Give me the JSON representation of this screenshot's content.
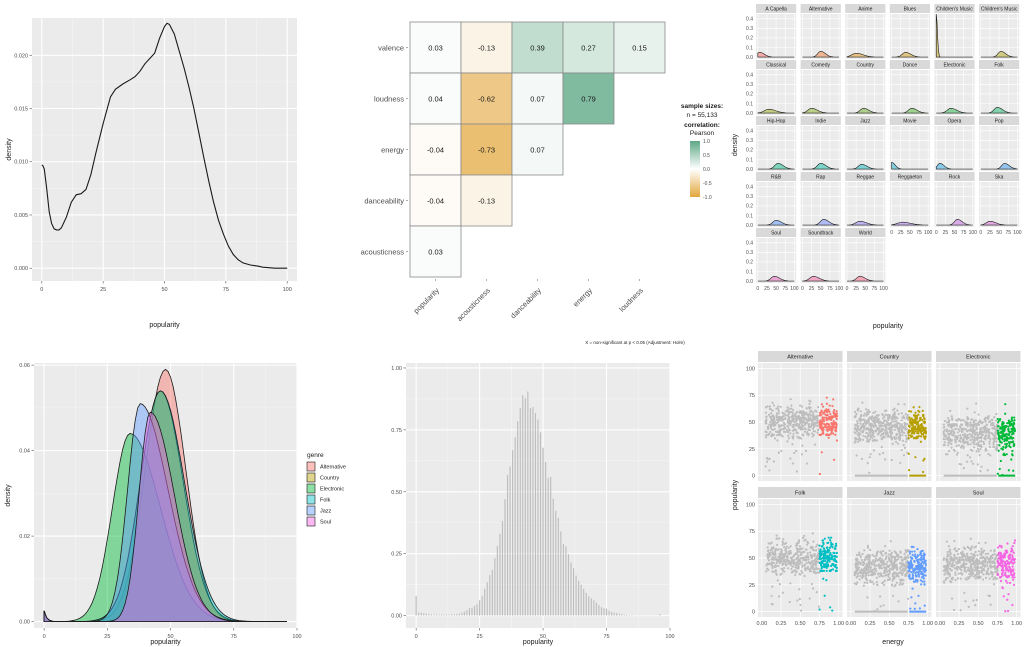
{
  "chart_data": [
    {
      "id": "overall-density",
      "type": "line",
      "title": "",
      "xlabel": "popularity",
      "ylabel": "density",
      "xlim": [
        0,
        100
      ],
      "ylim": [
        -0.0012,
        0.0235
      ],
      "xticks": [
        "0",
        "25",
        "50",
        "75",
        "100"
      ],
      "xtick_values": [
        0,
        25,
        50,
        75,
        100
      ],
      "yticks": [
        "0.000",
        "0.005",
        "0.010",
        "0.015",
        "0.020"
      ],
      "ytick_values": [
        0,
        0.005,
        0.01,
        0.015,
        0.02
      ],
      "grid": true,
      "series": [
        {
          "name": "popularity",
          "x": [
            0,
            0.5,
            1,
            2,
            3,
            4,
            5,
            6,
            7,
            8,
            10,
            12,
            14,
            16,
            18,
            20,
            22,
            25,
            28,
            30,
            33,
            36,
            38,
            40,
            42,
            44,
            46,
            48,
            50,
            51,
            52,
            54,
            56,
            58,
            60,
            62,
            64,
            66,
            68,
            70,
            72,
            74,
            76,
            78,
            80,
            82,
            85,
            88,
            90,
            95,
            100
          ],
          "y": [
            0.0097,
            0.0096,
            0.0093,
            0.0075,
            0.0053,
            0.0042,
            0.0037,
            0.0036,
            0.0036,
            0.0038,
            0.0048,
            0.0062,
            0.0069,
            0.007,
            0.0074,
            0.0088,
            0.0108,
            0.0136,
            0.0161,
            0.0168,
            0.0173,
            0.0177,
            0.018,
            0.0185,
            0.0192,
            0.0197,
            0.0202,
            0.0216,
            0.0227,
            0.023,
            0.0229,
            0.022,
            0.0204,
            0.0188,
            0.017,
            0.015,
            0.0127,
            0.0104,
            0.0082,
            0.0062,
            0.0045,
            0.0032,
            0.0021,
            0.0013,
            0.0008,
            0.0005,
            0.0003,
            0.0002,
            0.0001,
            0.0,
            0.0
          ]
        }
      ]
    },
    {
      "id": "correlation-matrix",
      "type": "heatmap",
      "title": "",
      "rows": [
        "valence",
        "loudness",
        "energy",
        "danceability",
        "acousticness"
      ],
      "columns": [
        "popularity",
        "acousticness",
        "danceability",
        "energy",
        "loudness"
      ],
      "values": [
        [
          0.03,
          -0.13,
          0.39,
          0.27,
          0.15
        ],
        [
          0.04,
          -0.62,
          0.07,
          0.79,
          null
        ],
        [
          -0.04,
          -0.73,
          0.07,
          null,
          null
        ],
        [
          -0.04,
          -0.13,
          null,
          null,
          null
        ],
        [
          0.03,
          null,
          null,
          null,
          null
        ]
      ],
      "labels": [
        [
          "0.03",
          "-0.13",
          "0.39",
          "0.27",
          "0.15"
        ],
        [
          "0.04",
          "-0.62",
          "0.07",
          "0.79",
          ""
        ],
        [
          "-0.04",
          "-0.73",
          "0.07",
          "",
          ""
        ],
        [
          "-0.04",
          "-0.13",
          "",
          "",
          ""
        ],
        [
          "0.03",
          "",
          "",
          "",
          ""
        ]
      ],
      "legend": {
        "sample_title": "sample sizes:",
        "sample_n": "n = 55,133",
        "corr_title": "correlation:",
        "corr_method": "Pearson",
        "scale_ticks": [
          "1.0",
          "0.5",
          "0.0",
          "-0.5",
          "-1.0"
        ],
        "scale_values": [
          1.0,
          0.5,
          0.0,
          -0.5,
          -1.0
        ],
        "color_high": "#5ea886",
        "color_mid": "#ffffff",
        "color_low": "#e3a73c",
        "placement": "right"
      },
      "caption": "X = non-significant at p < 0.05 (Adjustment: Holm)"
    },
    {
      "id": "genre-facet-density",
      "type": "area",
      "title": "",
      "xlabel": "popularity",
      "ylabel": "density",
      "xlim": [
        0,
        100
      ],
      "ylim": [
        0,
        0.45
      ],
      "xticks": [
        "0",
        "25",
        "50",
        "75",
        "100"
      ],
      "xtick_values": [
        0,
        25,
        50,
        75,
        100
      ],
      "yticks": [
        "0.0",
        "0.1",
        "0.2",
        "0.3",
        "0.4"
      ],
      "ytick_values": [
        0,
        0.1,
        0.2,
        0.3,
        0.4
      ],
      "facets": [
        {
          "name": "A Capella",
          "color": "#f8766d",
          "peak": 5,
          "height": 0.05,
          "spread": 8
        },
        {
          "name": "Alternative",
          "color": "#f08a4b",
          "peak": 50,
          "height": 0.06,
          "spread": 8
        },
        {
          "name": "Anime",
          "color": "#e29b2e",
          "peak": 25,
          "height": 0.04,
          "spread": 12
        },
        {
          "name": "Blues",
          "color": "#d4a42b",
          "peak": 38,
          "height": 0.05,
          "spread": 9
        },
        {
          "name": "Children's Music",
          "color": "#c7a92a",
          "peak": 0,
          "height": 0.45,
          "spread": 2
        },
        {
          "name": "Children's Music",
          "color": "#b8ad2a",
          "peak": 55,
          "height": 0.06,
          "spread": 8
        },
        {
          "name": "Classical",
          "color": "#a3b22b",
          "peak": 30,
          "height": 0.04,
          "spread": 12
        },
        {
          "name": "Comedy",
          "color": "#8fb52f",
          "peak": 25,
          "height": 0.05,
          "spread": 10
        },
        {
          "name": "Country",
          "color": "#7ab73a",
          "peak": 45,
          "height": 0.05,
          "spread": 9
        },
        {
          "name": "Dance",
          "color": "#5fb946",
          "peak": 55,
          "height": 0.05,
          "spread": 9
        },
        {
          "name": "Electronic",
          "color": "#3bba5a",
          "peak": 40,
          "height": 0.05,
          "spread": 10
        },
        {
          "name": "Folk",
          "color": "#2bbc78",
          "peak": 45,
          "height": 0.06,
          "spread": 9
        },
        {
          "name": "Hip-Hop",
          "color": "#23bd93",
          "peak": 55,
          "height": 0.06,
          "spread": 9
        },
        {
          "name": "Indie",
          "color": "#22beaa",
          "peak": 50,
          "height": 0.06,
          "spread": 9
        },
        {
          "name": "Jazz",
          "color": "#25bcc1",
          "peak": 40,
          "height": 0.05,
          "spread": 9
        },
        {
          "name": "Movie",
          "color": "#2ab7d6",
          "peak": 0,
          "height": 0.07,
          "spread": 6
        },
        {
          "name": "Opera",
          "color": "#36afe6",
          "peak": 10,
          "height": 0.06,
          "spread": 7
        },
        {
          "name": "Pop",
          "color": "#4aa4f1",
          "peak": 65,
          "height": 0.06,
          "spread": 8
        },
        {
          "name": "R&B",
          "color": "#6399f6",
          "peak": 50,
          "height": 0.05,
          "spread": 9
        },
        {
          "name": "Rap",
          "color": "#7d8ff8",
          "peak": 58,
          "height": 0.06,
          "spread": 9
        },
        {
          "name": "Reggae",
          "color": "#9786f6",
          "peak": 35,
          "height": 0.04,
          "spread": 11
        },
        {
          "name": "Reggaeton",
          "color": "#b17df0",
          "peak": 30,
          "height": 0.03,
          "spread": 14
        },
        {
          "name": "Rock",
          "color": "#c876e4",
          "peak": 58,
          "height": 0.06,
          "spread": 8
        },
        {
          "name": "Ska",
          "color": "#db70d4",
          "peak": 25,
          "height": 0.04,
          "spread": 10
        },
        {
          "name": "Soul",
          "color": "#e76dbf",
          "peak": 45,
          "height": 0.05,
          "spread": 9
        },
        {
          "name": "Soundtrack",
          "color": "#f06ca8",
          "peak": 30,
          "height": 0.05,
          "spread": 10
        },
        {
          "name": "World",
          "color": "#f56f8e",
          "peak": 35,
          "height": 0.05,
          "spread": 9
        }
      ]
    },
    {
      "id": "selected-genres-density",
      "type": "area",
      "title": "",
      "xlabel": "popularity",
      "ylabel": "density",
      "xlim": [
        0,
        100
      ],
      "ylim": [
        -0.0015,
        0.0605
      ],
      "xticks": [
        "0",
        "25",
        "50",
        "75",
        "100"
      ],
      "xtick_values": [
        0,
        25,
        50,
        75,
        100
      ],
      "yticks": [
        "0.00",
        "0.02",
        "0.04",
        "0.06"
      ],
      "ytick_values": [
        0,
        0.02,
        0.04,
        0.06
      ],
      "legend": {
        "title": "genre",
        "placement": "right"
      },
      "series": [
        {
          "name": "Alternative",
          "color": "#f8766d",
          "peak": 48,
          "height": 0.059,
          "sd_left": 8,
          "sd_right": 8
        },
        {
          "name": "Country",
          "color": "#b79f00",
          "peak": 46,
          "height": 0.054,
          "sd_left": 8,
          "sd_right": 9
        },
        {
          "name": "Electronic",
          "color": "#00ba38",
          "peak": 34,
          "height": 0.044,
          "sd_left": 7,
          "sd_right": 12
        },
        {
          "name": "Folk",
          "color": "#00bfc4",
          "peak": 46,
          "height": 0.054,
          "sd_left": 8,
          "sd_right": 9.5
        },
        {
          "name": "Jazz",
          "color": "#619cff",
          "peak": 38,
          "height": 0.051,
          "sd_left": 5,
          "sd_right": 11
        },
        {
          "name": "Soul",
          "color": "#f564e3",
          "peak": 42,
          "height": 0.049,
          "sd_left": 4.5,
          "sd_right": 9.5
        }
      ]
    },
    {
      "id": "popularity-histogram",
      "type": "bar",
      "title": "",
      "xlabel": "popularity",
      "ylabel": "",
      "xlim": [
        -4,
        100
      ],
      "ylim": [
        -0.05,
        1.02
      ],
      "xticks": [
        "0",
        "25",
        "50",
        "75",
        "100"
      ],
      "xtick_values": [
        0,
        25,
        50,
        75,
        100
      ],
      "yticks": [
        "0.00",
        "0.25",
        "0.50",
        "0.75",
        "1.00"
      ],
      "ytick_values": [
        0,
        0.25,
        0.5,
        0.75,
        1.0
      ],
      "bar_color": "#bdbdbd",
      "x": [
        0,
        1,
        2,
        3,
        4,
        5,
        6,
        7,
        8,
        9,
        10,
        11,
        12,
        13,
        14,
        15,
        16,
        17,
        18,
        19,
        20,
        21,
        22,
        23,
        24,
        25,
        26,
        27,
        28,
        29,
        30,
        31,
        32,
        33,
        34,
        35,
        36,
        37,
        38,
        39,
        40,
        41,
        42,
        43,
        44,
        45,
        46,
        47,
        48,
        49,
        50,
        51,
        52,
        53,
        54,
        55,
        56,
        57,
        58,
        59,
        60,
        61,
        62,
        63,
        64,
        65,
        66,
        67,
        68,
        69,
        70,
        71,
        72,
        73,
        74,
        75,
        76,
        77,
        78,
        79,
        80,
        81,
        82,
        83,
        84,
        85,
        86,
        87,
        88,
        89,
        90,
        91,
        92,
        93,
        94,
        95,
        96
      ],
      "values": [
        0.08,
        0.012,
        0.012,
        0.01,
        0.008,
        0.006,
        0.005,
        0.004,
        0.004,
        0.004,
        0.004,
        0.004,
        0.004,
        0.004,
        0.005,
        0.005,
        0.006,
        0.008,
        0.012,
        0.016,
        0.022,
        0.03,
        0.032,
        0.04,
        0.046,
        0.062,
        0.078,
        0.108,
        0.135,
        0.164,
        0.185,
        0.232,
        0.282,
        0.33,
        0.382,
        0.47,
        0.568,
        0.602,
        0.668,
        0.72,
        0.785,
        0.838,
        0.89,
        0.878,
        0.905,
        0.838,
        0.842,
        0.818,
        0.792,
        0.74,
        0.678,
        0.62,
        0.555,
        0.56,
        0.472,
        0.423,
        0.395,
        0.34,
        0.29,
        0.28,
        0.248,
        0.215,
        0.192,
        0.162,
        0.14,
        0.125,
        0.108,
        0.092,
        0.078,
        0.07,
        0.062,
        0.052,
        0.042,
        0.034,
        0.03,
        0.028,
        0.02,
        0.015,
        0.012,
        0.01,
        0.008,
        0.006,
        0.004,
        0.003,
        0.002,
        0.002,
        0.001,
        0.001,
        0.001,
        0.001,
        0.001,
        0.001,
        0.001,
        0.001,
        0.001,
        0.001,
        0.006
      ]
    },
    {
      "id": "energy-popularity-scatter",
      "type": "scatter",
      "title": "",
      "xlabel": "energy",
      "ylabel": "popularity",
      "xlim": [
        -0.05,
        1.05
      ],
      "ylim": [
        -5,
        105
      ],
      "xticks": [
        "0.00",
        "0.25",
        "0.50",
        "0.75",
        "1.00"
      ],
      "xtick_values": [
        0,
        0.25,
        0.5,
        0.75,
        1.0
      ],
      "yticks": [
        "0",
        "25",
        "50",
        "75",
        "100"
      ],
      "ytick_values": [
        0,
        25,
        50,
        75,
        100
      ],
      "highlight_threshold_energy": 0.75,
      "other_color": "#bdbdbd",
      "facets": [
        {
          "name": "Alternative",
          "color": "#f8766d",
          "center": 50,
          "low": 38,
          "high": 75,
          "zero_band": false
        },
        {
          "name": "Country",
          "color": "#b79f00",
          "center": 45,
          "low": 35,
          "high": 75,
          "zero_band": true
        },
        {
          "name": "Electronic",
          "color": "#00ba38",
          "center": 40,
          "low": 20,
          "high": 75,
          "zero_band": true
        },
        {
          "name": "Folk",
          "color": "#00bfc4",
          "center": 50,
          "low": 38,
          "high": 73,
          "zero_band": false
        },
        {
          "name": "Jazz",
          "color": "#619cff",
          "center": 42,
          "low": 28,
          "high": 68,
          "zero_band": true
        },
        {
          "name": "Soul",
          "color": "#f564e3",
          "center": 45,
          "low": 32,
          "high": 70,
          "zero_band": false
        }
      ]
    }
  ]
}
